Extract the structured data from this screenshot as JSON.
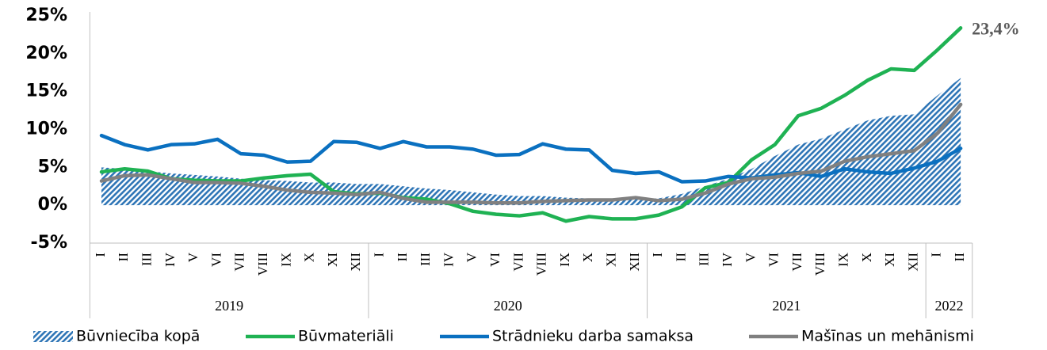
{
  "chart_data": {
    "type": "line",
    "groups": [
      {
        "label": "2019",
        "categories": [
          "I",
          "II",
          "III",
          "IV",
          "V",
          "VI",
          "VII",
          "VIII",
          "IX",
          "X",
          "XI",
          "XII"
        ]
      },
      {
        "label": "2020",
        "categories": [
          "I",
          "II",
          "III",
          "IV",
          "V",
          "VI",
          "VII",
          "VIII",
          "IX",
          "X",
          "XI",
          "XII"
        ]
      },
      {
        "label": "2021",
        "categories": [
          "I",
          "II",
          "III",
          "IV",
          "V",
          "VI",
          "VII",
          "VIII",
          "IX",
          "X",
          "XI",
          "XII"
        ]
      },
      {
        "label": "2022",
        "categories": [
          "I",
          "II"
        ]
      }
    ],
    "series": [
      {
        "name": "Būvniecība kopā",
        "kind": "area",
        "color": "#2e75b6",
        "values": [
          5.0,
          4.8,
          4.5,
          4.2,
          4.0,
          3.8,
          3.5,
          3.3,
          3.2,
          3.0,
          3.0,
          2.8,
          2.8,
          2.5,
          2.2,
          2.0,
          1.7,
          1.4,
          1.2,
          1.2,
          1.0,
          0.9,
          0.8,
          0.8,
          0.9,
          1.5,
          2.5,
          3.5,
          4.8,
          6.5,
          8.0,
          8.8,
          10.0,
          11.2,
          11.8,
          12.0,
          14.5,
          16.8
        ]
      },
      {
        "name": "Būvmateriāli",
        "kind": "line",
        "color": "#1fb253",
        "values": [
          4.4,
          4.8,
          4.5,
          3.5,
          3.3,
          3.2,
          3.2,
          3.6,
          3.9,
          4.1,
          1.8,
          1.5,
          1.6,
          1.0,
          0.8,
          0.2,
          -0.8,
          -1.2,
          -1.4,
          -1.0,
          -2.1,
          -1.5,
          -1.8,
          -1.8,
          -1.3,
          -0.2,
          2.3,
          3.0,
          6.0,
          8.0,
          11.8,
          12.8,
          14.5,
          16.5,
          18.0,
          17.8,
          20.5,
          23.4
        ]
      },
      {
        "name": "Strādnieku darba samaksa",
        "kind": "line",
        "color": "#0a70c0",
        "values": [
          9.2,
          8.0,
          7.3,
          8.0,
          8.1,
          8.7,
          6.8,
          6.6,
          5.7,
          5.8,
          8.4,
          8.3,
          7.5,
          8.4,
          7.7,
          7.7,
          7.4,
          6.6,
          6.7,
          8.1,
          7.4,
          7.3,
          4.6,
          4.2,
          4.4,
          3.1,
          3.2,
          3.8,
          3.6,
          4.0,
          4.3,
          3.8,
          4.8,
          4.4,
          4.2,
          4.9,
          5.8,
          7.5
        ]
      },
      {
        "name": "Mašīnas un mehānismi",
        "kind": "line",
        "color": "#808080",
        "values": [
          3.2,
          3.9,
          4.0,
          3.5,
          3.0,
          3.0,
          2.9,
          2.5,
          2.0,
          1.7,
          1.6,
          1.4,
          1.7,
          0.9,
          0.4,
          0.4,
          0.4,
          0.3,
          0.3,
          0.5,
          0.6,
          0.7,
          0.7,
          1.0,
          0.6,
          0.8,
          1.6,
          2.8,
          3.5,
          3.7,
          4.2,
          4.5,
          5.8,
          6.4,
          6.8,
          7.2,
          9.5,
          13.3
        ]
      }
    ],
    "annotation": {
      "series": 1,
      "index": 37,
      "label": "23,4%"
    },
    "ylim": [
      -5,
      25
    ],
    "yticks": [
      {
        "value": -5,
        "label": "-5%"
      },
      {
        "value": 0,
        "label": "0%"
      },
      {
        "value": 5,
        "label": "5%"
      },
      {
        "value": 10,
        "label": "10%"
      },
      {
        "value": 15,
        "label": "15%"
      },
      {
        "value": 20,
        "label": "20%"
      },
      {
        "value": 25,
        "label": "25%"
      }
    ],
    "legend": "bottom",
    "grid": false
  }
}
